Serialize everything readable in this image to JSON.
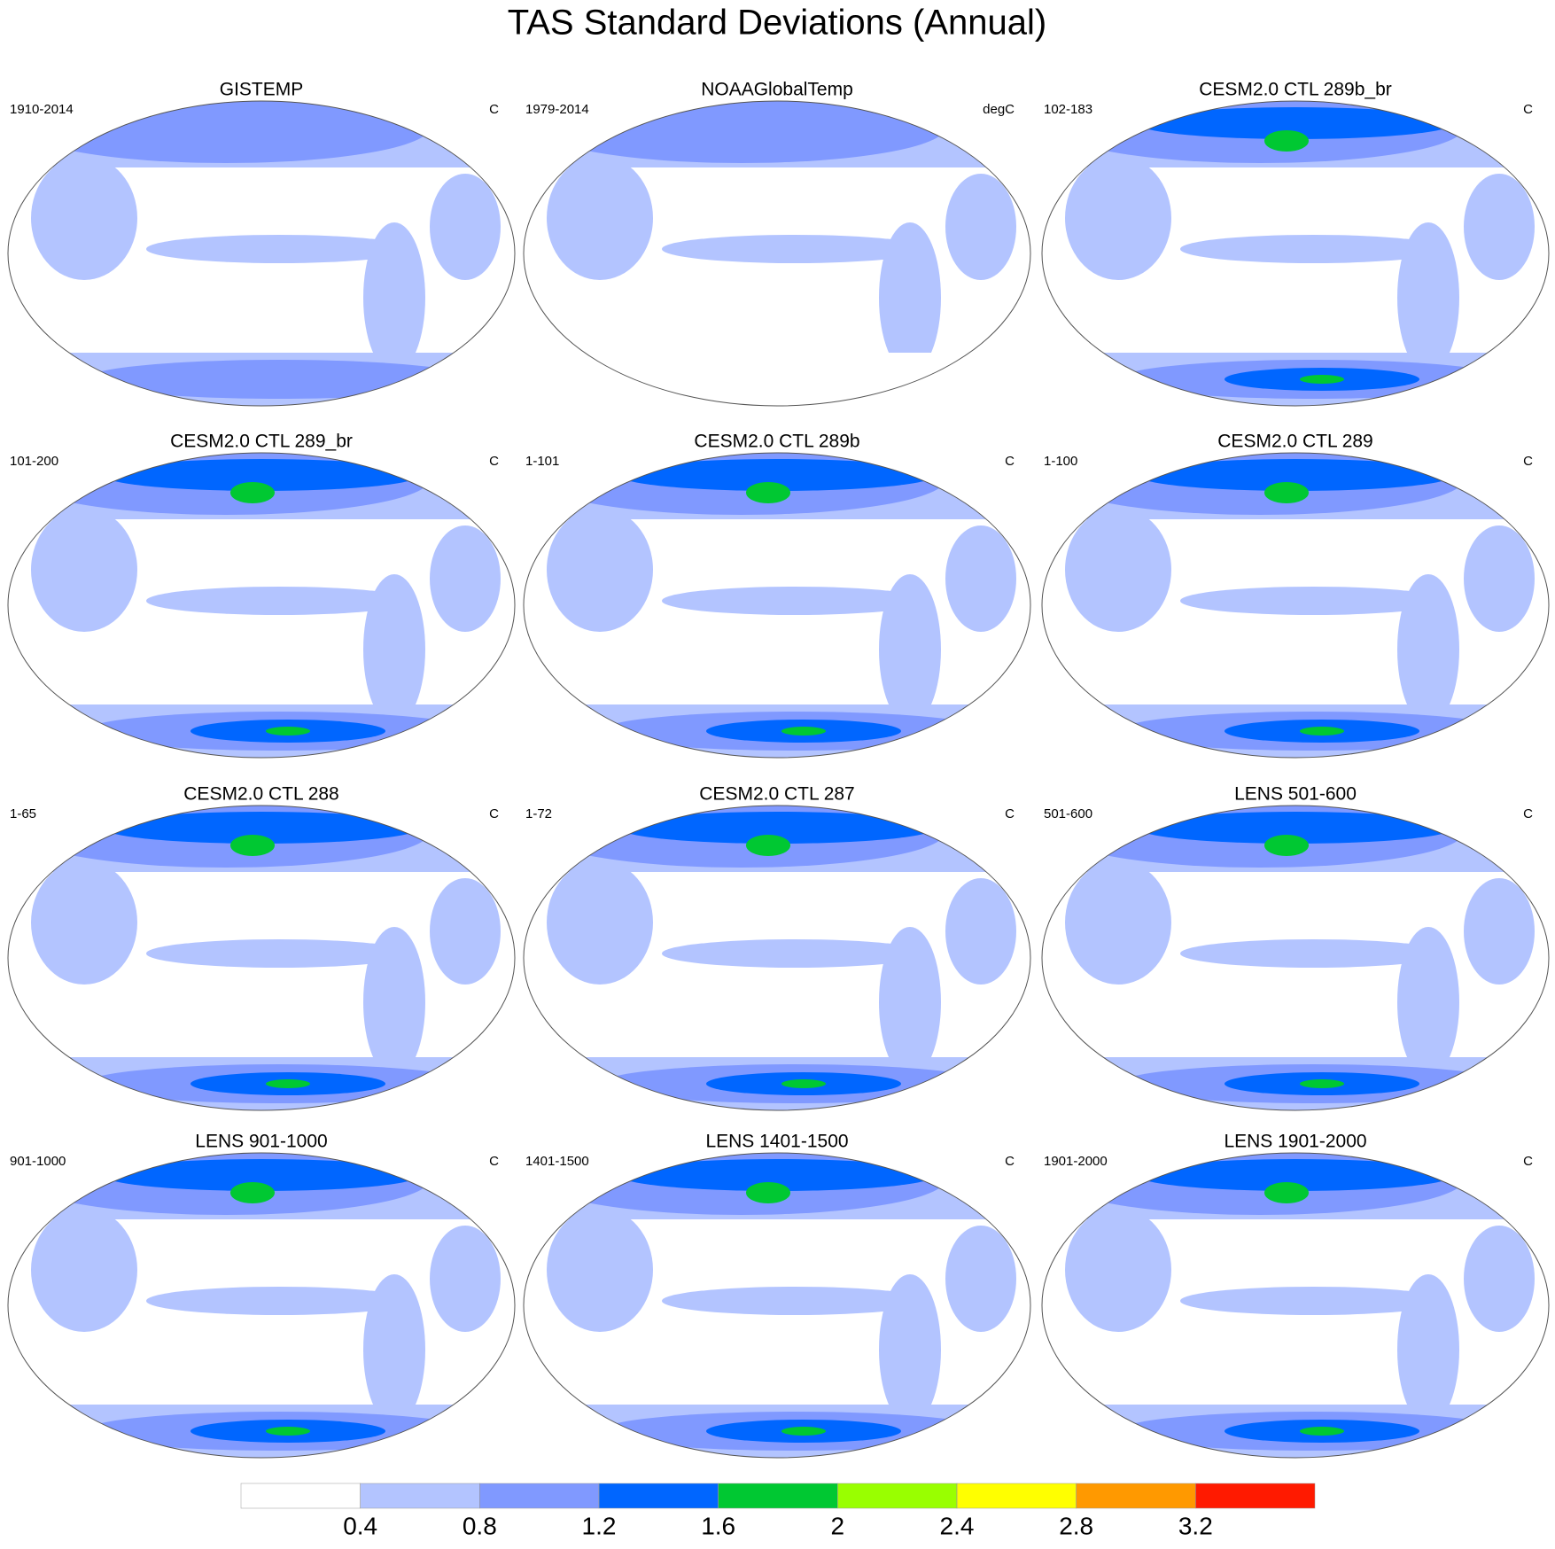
{
  "title": "TAS Standard Deviations (Annual)",
  "panels": [
    {
      "title": "GISTEMP",
      "left": "1910-2014",
      "right": "C"
    },
    {
      "title": "NOAAGlobalTemp",
      "left": "1979-2014",
      "right": "degC"
    },
    {
      "title": "CESM2.0 CTL 289b_br",
      "left": "102-183",
      "right": "C"
    },
    {
      "title": "CESM2.0 CTL 289_br",
      "left": "101-200",
      "right": "C"
    },
    {
      "title": "CESM2.0 CTL 289b",
      "left": "1-101",
      "right": "C"
    },
    {
      "title": "CESM2.0 CTL 289",
      "left": "1-100",
      "right": "C"
    },
    {
      "title": "CESM2.0 CTL 288",
      "left": "1-65",
      "right": "C"
    },
    {
      "title": "CESM2.0 CTL 287",
      "left": "1-72",
      "right": "C"
    },
    {
      "title": "LENS 501-600",
      "left": "501-600",
      "right": "C"
    },
    {
      "title": "LENS 901-1000",
      "left": "901-1000",
      "right": "C"
    },
    {
      "title": "LENS 1401-1500",
      "left": "1401-1500",
      "right": "C"
    },
    {
      "title": "LENS 1901-2000",
      "left": "1901-2000",
      "right": "C"
    }
  ],
  "colorbar": {
    "levels": [
      0.4,
      0.8,
      1.2,
      1.6,
      2,
      2.4,
      2.8,
      3.2
    ],
    "colors": [
      "#ffffff",
      "#b3c4ff",
      "#8099ff",
      "#0066ff",
      "#00c832",
      "#99ff00",
      "#ffff00",
      "#ff9900",
      "#ff1a00"
    ]
  }
}
